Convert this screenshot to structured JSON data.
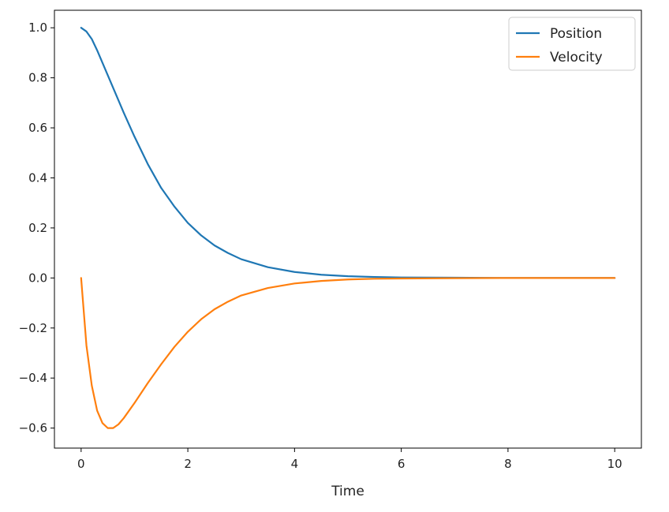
{
  "chart_data": {
    "type": "line",
    "title": "",
    "xlabel": "Time",
    "ylabel": "",
    "xlim": [
      -0.5,
      10.5
    ],
    "ylim": [
      -0.68,
      1.07
    ],
    "xticks": [
      0,
      2,
      4,
      6,
      8,
      10
    ],
    "xtick_labels": [
      "0",
      "2",
      "4",
      "6",
      "8",
      "10"
    ],
    "yticks": [
      -0.6,
      -0.4,
      -0.2,
      0.0,
      0.2,
      0.4,
      0.6,
      0.8,
      1.0
    ],
    "ytick_labels": [
      "−0.6",
      "−0.4",
      "−0.2",
      "0.0",
      "0.2",
      "0.4",
      "0.6",
      "0.8",
      "1.0"
    ],
    "grid": false,
    "legend_position": "top-right",
    "series": [
      {
        "name": "Position",
        "color": "#1f77b4",
        "x": [
          0,
          0.1,
          0.2,
          0.3,
          0.4,
          0.5,
          0.6,
          0.8,
          1.0,
          1.25,
          1.5,
          1.75,
          2.0,
          2.25,
          2.5,
          2.75,
          3.0,
          3.5,
          4.0,
          4.5,
          5.0,
          5.5,
          6.0,
          7.0,
          8.0,
          9.0,
          10.0
        ],
        "values": [
          1.0,
          0.985,
          0.955,
          0.91,
          0.86,
          0.81,
          0.76,
          0.66,
          0.565,
          0.455,
          0.36,
          0.285,
          0.22,
          0.17,
          0.13,
          0.1,
          0.075,
          0.043,
          0.024,
          0.013,
          0.007,
          0.004,
          0.002,
          0.001,
          0.0,
          0.0,
          0.0
        ]
      },
      {
        "name": "Velocity",
        "color": "#ff7f0e",
        "x": [
          0,
          0.1,
          0.2,
          0.3,
          0.4,
          0.5,
          0.6,
          0.7,
          0.8,
          1.0,
          1.25,
          1.5,
          1.75,
          2.0,
          2.25,
          2.5,
          2.75,
          3.0,
          3.5,
          4.0,
          4.5,
          5.0,
          5.5,
          6.0,
          7.0,
          8.0,
          9.0,
          10.0
        ],
        "values": [
          0.0,
          -0.27,
          -0.43,
          -0.53,
          -0.58,
          -0.6,
          -0.6,
          -0.585,
          -0.56,
          -0.5,
          -0.42,
          -0.345,
          -0.275,
          -0.215,
          -0.165,
          -0.125,
          -0.095,
          -0.07,
          -0.04,
          -0.022,
          -0.012,
          -0.006,
          -0.003,
          -0.002,
          -0.001,
          0.0,
          0.0,
          0.0
        ]
      }
    ]
  }
}
